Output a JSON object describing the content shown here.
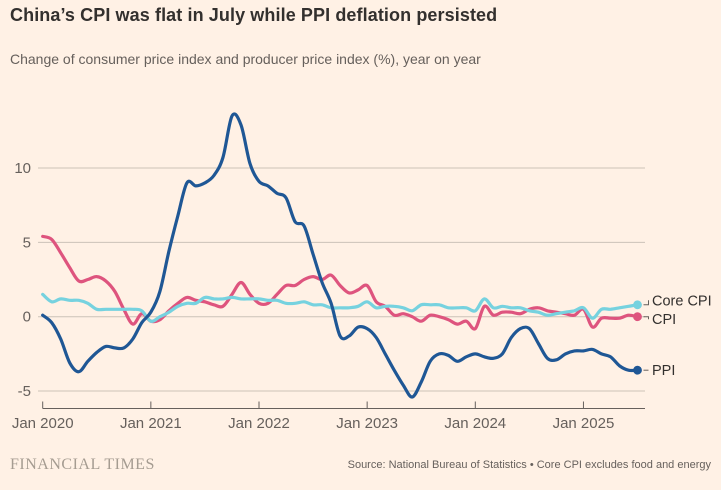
{
  "header": {
    "title": "China’s CPI was flat in July while PPI deflation persisted",
    "subtitle": "Change of consumer price index and producer price index (%), year on year"
  },
  "footer": {
    "brand": "FINANCIAL TIMES",
    "source": "Source: National Bureau of Statistics • Core CPI excludes food and energy"
  },
  "colors": {
    "background": "#fff1e5",
    "title_text": "#33302e",
    "secondary_text": "#66605c",
    "gridline": "#ccc2b8",
    "axis": "#66605c",
    "cpi": "#de547e",
    "core_cpi": "#76d2df",
    "ppi": "#1f5795"
  },
  "chart_data": {
    "type": "line",
    "title": "China’s CPI was flat in July while PPI deflation persisted",
    "subtitle": "Change of consumer price index and producer price index (%), year on year",
    "ylabel": "%",
    "x_frequency": "monthly",
    "x_start": "Jan 2020",
    "x_end": "Jul 2025",
    "x_tick_labels": [
      "Jan 2020",
      "Jan 2021",
      "Jan 2022",
      "Jan 2023",
      "Jan 2024",
      "Jan 2025"
    ],
    "y_ticks": [
      10,
      5,
      0,
      -5
    ],
    "ylim": [
      -6.5,
      14.5
    ],
    "grid": true,
    "legend_position": "end-of-line",
    "series": [
      {
        "name": "CPI",
        "color": "#de547e",
        "values": [
          5.4,
          5.2,
          4.3,
          3.3,
          2.4,
          2.5,
          2.7,
          2.4,
          1.7,
          0.5,
          -0.5,
          0.2,
          -0.3,
          -0.2,
          0.4,
          0.9,
          1.3,
          1.1,
          1.0,
          0.8,
          0.7,
          1.5,
          2.3,
          1.5,
          0.9,
          0.9,
          1.5,
          2.1,
          2.1,
          2.5,
          2.7,
          2.5,
          2.8,
          2.1,
          1.6,
          1.8,
          2.1,
          1.0,
          0.7,
          0.1,
          0.2,
          0.0,
          -0.3,
          0.1,
          0.0,
          -0.2,
          -0.5,
          -0.3,
          -0.8,
          0.7,
          0.1,
          0.3,
          0.3,
          0.2,
          0.5,
          0.6,
          0.4,
          0.3,
          0.2,
          0.1,
          0.5,
          -0.7,
          -0.1,
          -0.1,
          -0.1,
          0.1,
          0.0
        ]
      },
      {
        "name": "Core CPI",
        "color": "#76d2df",
        "values": [
          1.5,
          1.0,
          1.2,
          1.1,
          1.1,
          0.9,
          0.5,
          0.5,
          0.5,
          0.5,
          0.5,
          0.4,
          -0.3,
          0.0,
          0.3,
          0.7,
          0.9,
          0.9,
          1.3,
          1.2,
          1.2,
          1.3,
          1.2,
          1.2,
          1.2,
          1.1,
          1.1,
          0.9,
          0.9,
          1.0,
          0.8,
          0.8,
          0.6,
          0.6,
          0.6,
          0.7,
          1.0,
          0.6,
          0.7,
          0.7,
          0.6,
          0.4,
          0.8,
          0.8,
          0.8,
          0.6,
          0.6,
          0.6,
          0.4,
          1.2,
          0.6,
          0.7,
          0.6,
          0.6,
          0.4,
          0.3,
          0.1,
          0.2,
          0.3,
          0.4,
          0.6,
          -0.1,
          0.5,
          0.5,
          0.6,
          0.7,
          0.8
        ]
      },
      {
        "name": "PPI",
        "color": "#1f5795",
        "values": [
          0.1,
          -0.4,
          -1.5,
          -3.1,
          -3.7,
          -3.0,
          -2.4,
          -2.0,
          -2.1,
          -2.1,
          -1.5,
          -0.4,
          0.3,
          1.7,
          4.4,
          6.8,
          9.0,
          8.8,
          9.0,
          9.5,
          10.7,
          13.5,
          12.9,
          10.3,
          9.1,
          8.8,
          8.3,
          8.0,
          6.4,
          6.1,
          4.2,
          2.3,
          0.9,
          -1.3,
          -1.3,
          -0.7,
          -0.8,
          -1.4,
          -2.5,
          -3.6,
          -4.6,
          -5.4,
          -4.4,
          -3.0,
          -2.5,
          -2.6,
          -3.0,
          -2.7,
          -2.5,
          -2.7,
          -2.8,
          -2.5,
          -1.4,
          -0.8,
          -0.8,
          -1.8,
          -2.8,
          -2.9,
          -2.5,
          -2.3,
          -2.3,
          -2.2,
          -2.5,
          -2.7,
          -3.3,
          -3.6,
          -3.6
        ]
      }
    ]
  }
}
